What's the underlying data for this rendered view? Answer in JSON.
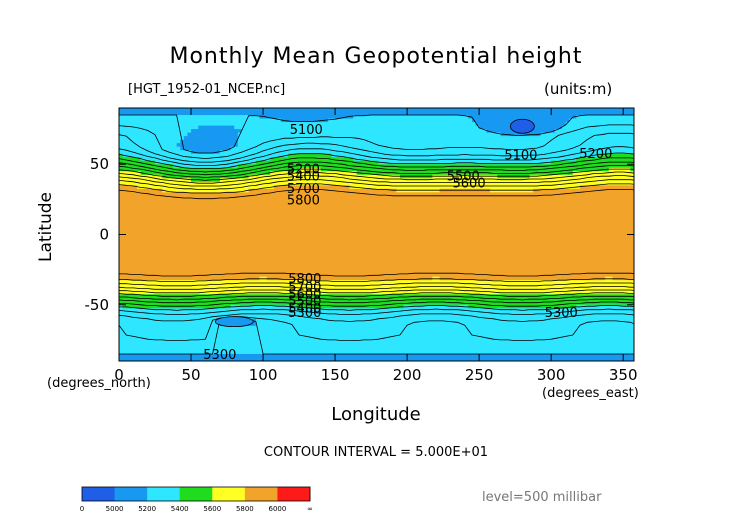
{
  "chart_data": {
    "type": "heatmap",
    "title": "Monthly Mean Geopotential height",
    "file": "[HGT_1952-01_NCEP.nc]",
    "units": "(units:m)",
    "xlabel": "Longitude",
    "ylabel": "Latitude",
    "x_unit_label": "(degrees_east)",
    "y_unit_label": "(degrees_north)",
    "xlim": [
      0,
      357.5
    ],
    "ylim": [
      -90,
      90
    ],
    "xticks": [
      0,
      50,
      100,
      150,
      200,
      250,
      300,
      350
    ],
    "yticks": [
      50,
      0,
      -50
    ],
    "contour_interval_text": "CONTOUR INTERVAL = 5.000E+01",
    "level_text": "level=500 millibar",
    "color_bands": [
      {
        "min": 0,
        "max": 5000,
        "color": "#1f5fe8"
      },
      {
        "min": 5000,
        "max": 5200,
        "color": "#1799f2"
      },
      {
        "min": 5200,
        "max": 5400,
        "color": "#2ee6ff"
      },
      {
        "min": 5400,
        "max": 5600,
        "color": "#1fdc1f"
      },
      {
        "min": 5600,
        "max": 5800,
        "color": "#ffff22"
      },
      {
        "min": 5800,
        "max": 6000,
        "color": "#f2a42a"
      },
      {
        "min": 6000,
        "max": null,
        "color": "#ff1a1a"
      }
    ],
    "colorbar_labels": [
      "0",
      "5000",
      "5200",
      "5400",
      "5600",
      "5800",
      "6000",
      "∞"
    ],
    "contour_labels": [
      {
        "text": "5100",
        "lon": 130,
        "lat": 75
      },
      {
        "text": "5100",
        "lon": 279,
        "lat": 57
      },
      {
        "text": "5200",
        "lon": 331,
        "lat": 58
      },
      {
        "text": "5200",
        "lon": 128,
        "lat": 47
      },
      {
        "text": "5400",
        "lon": 128,
        "lat": 42
      },
      {
        "text": "5500",
        "lon": 239,
        "lat": 42
      },
      {
        "text": "5600",
        "lon": 243,
        "lat": 37
      },
      {
        "text": "5700",
        "lon": 128,
        "lat": 33
      },
      {
        "text": "5800",
        "lon": 128,
        "lat": 25
      },
      {
        "text": "5800",
        "lon": 129,
        "lat": -31
      },
      {
        "text": "5700",
        "lon": 129,
        "lat": -37
      },
      {
        "text": "5600",
        "lon": 129,
        "lat": -42
      },
      {
        "text": "5500",
        "lon": 129,
        "lat": -47
      },
      {
        "text": "5400",
        "lon": 129,
        "lat": -52
      },
      {
        "text": "5300",
        "lon": 129,
        "lat": -55
      },
      {
        "text": "5300",
        "lon": 307,
        "lat": -55
      },
      {
        "text": "5300",
        "lon": 70,
        "lat": -85
      }
    ]
  }
}
